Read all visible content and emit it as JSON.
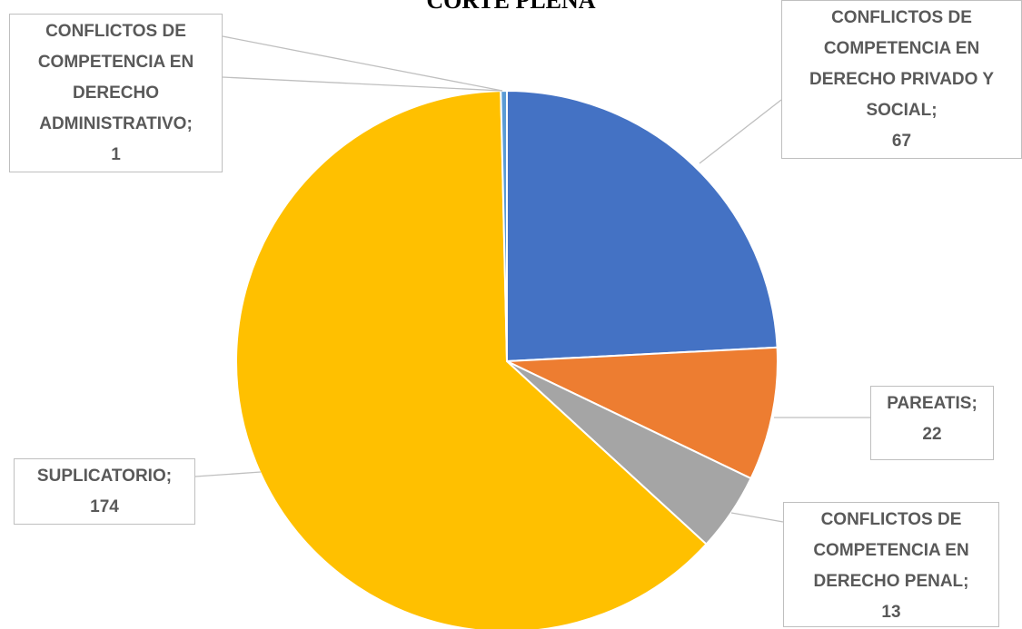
{
  "chart_data": {
    "type": "pie",
    "title": "CORTE PLENA",
    "label_separator": ";",
    "categories": [
      "CONFLICTOS DE COMPETENCIA EN DERECHO PRIVADO Y SOCIAL",
      "PAREATIS",
      "CONFLICTOS DE COMPETENCIA EN DERECHO PENAL",
      "SUPLICATORIO",
      "CONFLICTOS DE COMPETENCIA EN DERECHO ADMINISTRATIVO"
    ],
    "values": [
      67,
      22,
      13,
      174,
      1
    ],
    "colors": [
      "#4472c4",
      "#ed7d31",
      "#a5a5a5",
      "#ffc000",
      "#5b9bd5"
    ]
  }
}
